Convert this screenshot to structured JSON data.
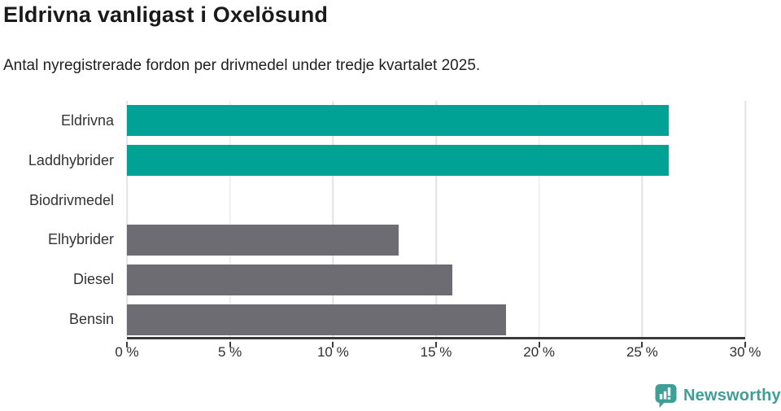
{
  "title": "Eldrivna vanligast i Oxelösund",
  "subtitle": "Antal nyregistrerade fordon per drivmedel under tredje kvartalet 2025.",
  "colors": {
    "highlight": "#00A295",
    "default_bar": "#6C6C72",
    "axis": "#3A3A3A",
    "gridline": "#E3E3E3",
    "title_text": "#1A1A1A",
    "label_text": "#333333",
    "brand_teal": "#3F9E96"
  },
  "chart_data": {
    "type": "bar",
    "orientation": "horizontal",
    "title": "Eldrivna vanligast i Oxelösund",
    "subtitle": "Antal nyregistrerade fordon per drivmedel under tredje kvartalet 2025.",
    "categories": [
      "Eldrivna",
      "Laddhybrider",
      "Biodrivmedel",
      "Elhybrider",
      "Diesel",
      "Bensin"
    ],
    "values": [
      26.3,
      26.3,
      0,
      13.2,
      15.8,
      18.4
    ],
    "bar_colors": [
      "#00A295",
      "#00A295",
      "#6C6C72",
      "#6C6C72",
      "#6C6C72",
      "#6C6C72"
    ],
    "xlabel": "",
    "ylabel": "",
    "xlim": [
      0,
      30
    ],
    "x_ticks": [
      0,
      5,
      10,
      15,
      20,
      25,
      30
    ],
    "x_tick_labels": [
      "0 %",
      "5 %",
      "10 %",
      "15 %",
      "20 %",
      "25 %",
      "30 %"
    ],
    "grid": "vertical-only",
    "legend": "none"
  },
  "footer": {
    "brand_name": "Newsworthy",
    "brand_icon": "newsworthy-speech-bubble-chart-icon"
  }
}
